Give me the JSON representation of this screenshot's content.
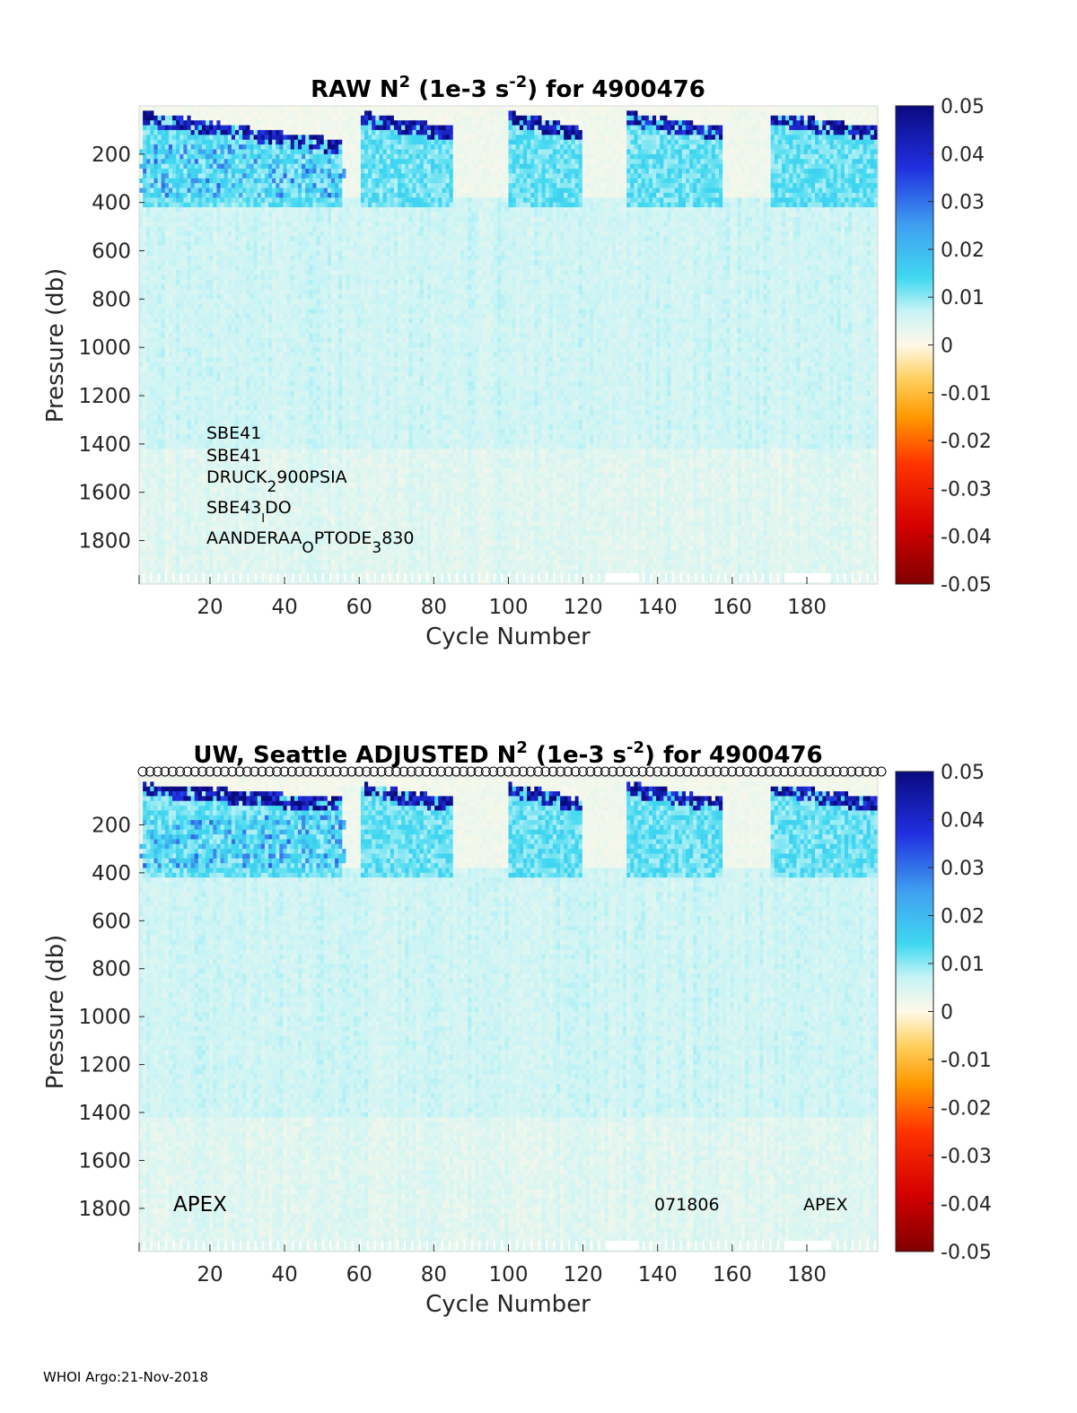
{
  "footer": "WHOI Argo:21-Nov-2018",
  "chart_data": [
    {
      "type": "heatmap",
      "title_parts": [
        "RAW N",
        "2",
        " (1e-3 s",
        "-2",
        ") for 4900476"
      ],
      "xlabel": "Cycle Number",
      "ylabel": "Pressure (db)",
      "xlim": [
        1,
        199
      ],
      "ylim": [
        1980,
        0
      ],
      "y_reversed": true,
      "xticks": [
        20,
        40,
        60,
        80,
        100,
        120,
        140,
        160,
        180
      ],
      "yticks": [
        200,
        400,
        600,
        800,
        1000,
        1200,
        1400,
        1600,
        1800
      ],
      "colorbar": {
        "colormap": "red-yellow-white-cyan-blue",
        "clim": [
          -0.05,
          0.05
        ],
        "ticks": [
          "0.05",
          "0.04",
          "0.03",
          "0.02",
          "0.01",
          "0",
          "-0.01",
          "-0.02",
          "-0.03",
          "-0.04",
          "-0.05"
        ]
      },
      "sensor_labels": [
        {
          "parts": [
            "SBE41"
          ]
        },
        {
          "parts": [
            "SBE41"
          ]
        },
        {
          "parts": [
            "DRUCK",
            "2",
            "900PSIA"
          ],
          "sub_index": 1
        },
        {
          "parts": [
            "SBE43",
            "I",
            "DO"
          ],
          "sub_index": 1
        },
        {
          "parts": [
            "AANDERAA",
            "O",
            "PTODE",
            "3",
            "830"
          ],
          "sub_index": [
            1,
            3
          ]
        }
      ],
      "background_n2_deep": 0.006,
      "strong_stratification_cycles": [
        [
          2,
          55
        ],
        [
          60,
          85
        ],
        [
          100,
          120
        ],
        [
          132,
          157
        ],
        [
          170,
          199
        ]
      ],
      "strong_stratification_value": 0.045
    },
    {
      "type": "heatmap",
      "title_parts": [
        "UW, Seattle  ADJUSTED N",
        "2",
        " (1e-3 s",
        "-2",
        ") for 4900476"
      ],
      "xlabel": "Cycle Number",
      "ylabel": "Pressure (db)",
      "xlim": [
        1,
        199
      ],
      "ylim": [
        1980,
        0
      ],
      "y_reversed": true,
      "xticks": [
        20,
        40,
        60,
        80,
        100,
        120,
        140,
        160,
        180
      ],
      "yticks": [
        200,
        400,
        600,
        800,
        1000,
        1200,
        1400,
        1600,
        1800
      ],
      "colorbar": {
        "colormap": "red-yellow-white-cyan-blue",
        "clim": [
          -0.05,
          0.05
        ],
        "ticks": [
          "0.05",
          "0.04",
          "0.03",
          "0.02",
          "0.01",
          "0",
          "-0.01",
          "-0.02",
          "-0.03",
          "-0.04",
          "-0.05"
        ]
      },
      "annotations": {
        "left": "APEX",
        "middle": "071806",
        "right": "APEX"
      },
      "qc_circles_on_top": true
    }
  ]
}
